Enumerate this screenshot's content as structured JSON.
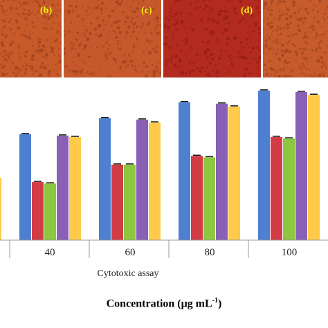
{
  "panels": [
    {
      "letter": "(b)",
      "color": "#c85a2a",
      "tint": "#9e3f1c"
    },
    {
      "letter": "(c)",
      "color": "#c6582b",
      "tint": "#9a3d1b"
    },
    {
      "letter": "(d)",
      "color": "#b32a1f",
      "tint": "#8c1a14"
    },
    {
      "letter": "",
      "color": "#c75b2c",
      "tint": "#9c401d"
    }
  ],
  "chart_data": {
    "type": "bar",
    "categories": [
      "40",
      "60",
      "80",
      "100"
    ],
    "series": [
      {
        "color": "#4f7fd0",
        "values": [
          73,
          84,
          95,
          103
        ]
      },
      {
        "color": "#d23c46",
        "values": [
          40,
          52,
          58,
          71
        ]
      },
      {
        "color": "#8dc63f",
        "values": [
          39,
          52,
          57,
          70
        ]
      },
      {
        "color": "#8a5fb6",
        "values": [
          72,
          83,
          94,
          102
        ]
      },
      {
        "color": "#ffc94a",
        "values": [
          71,
          81,
          92,
          100
        ]
      }
    ],
    "ylim": [
      0,
      112
    ],
    "group_title": "Cytotoxic assay",
    "xlabel": "Concentration (μg mL",
    "xlabel_sup": "-1",
    "xlabel_end": ")",
    "grid": false
  }
}
